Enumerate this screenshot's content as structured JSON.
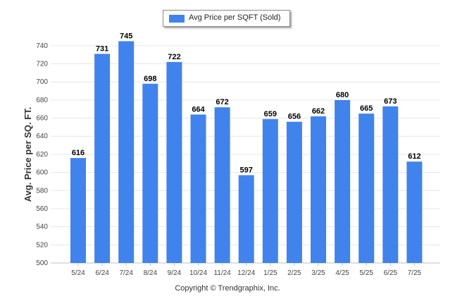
{
  "colors": {
    "bar": "#4183ec",
    "grid": "#e6e6e6",
    "axis": "#333333"
  },
  "copyright": "Copyright © Trendgraphix, Inc.",
  "chart_data": {
    "type": "bar",
    "categories": [
      "5/24",
      "6/24",
      "7/24",
      "8/24",
      "9/24",
      "10/24",
      "11/24",
      "12/24",
      "1/25",
      "2/25",
      "3/25",
      "4/25",
      "5/25",
      "6/25",
      "7/25"
    ],
    "series": [
      {
        "name": "Avg Price per SQFT (Sold)",
        "values": [
          616,
          731,
          745,
          698,
          722,
          664,
          672,
          597,
          659,
          656,
          662,
          680,
          665,
          673,
          612
        ]
      }
    ],
    "ylabel": "Avg. Price per SQ. FT.",
    "xlabel": "",
    "ylim": [
      500,
      750
    ],
    "yticks": [
      500,
      520,
      540,
      560,
      580,
      600,
      620,
      640,
      660,
      680,
      700,
      720,
      740
    ],
    "grid": true,
    "legend": "top-center",
    "data_labels": true
  }
}
